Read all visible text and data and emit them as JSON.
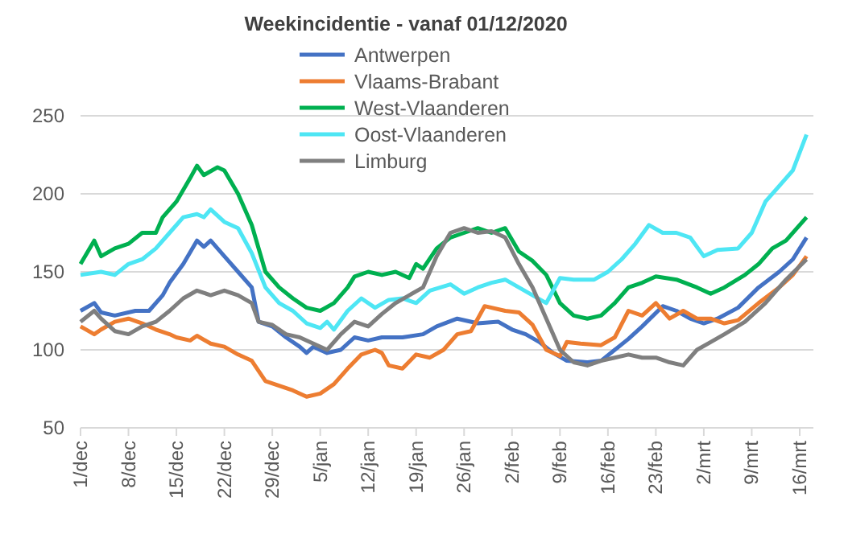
{
  "chart_data": {
    "type": "line",
    "title": "Weekincidentie  - vanaf 01/12/2020",
    "xlim": [
      "2020-12-01",
      "2021-03-18"
    ],
    "xticks": [
      {
        "value": "2020-12-01",
        "label": "1/dec"
      },
      {
        "value": "2020-12-08",
        "label": "8/dec"
      },
      {
        "value": "2020-12-15",
        "label": "15/dec"
      },
      {
        "value": "2020-12-22",
        "label": "22/dec"
      },
      {
        "value": "2020-12-29",
        "label": "29/dec"
      },
      {
        "value": "2021-01-05",
        "label": "5/jan"
      },
      {
        "value": "2021-01-12",
        "label": "12/jan"
      },
      {
        "value": "2021-01-19",
        "label": "19/jan"
      },
      {
        "value": "2021-01-26",
        "label": "26/jan"
      },
      {
        "value": "2021-02-02",
        "label": "2/feb"
      },
      {
        "value": "2021-02-09",
        "label": "9/feb"
      },
      {
        "value": "2021-02-16",
        "label": "16/feb"
      },
      {
        "value": "2021-02-23",
        "label": "23/feb"
      },
      {
        "value": "2021-03-02",
        "label": "2/mrt"
      },
      {
        "value": "2021-03-09",
        "label": "9/mrt"
      },
      {
        "value": "2021-03-16",
        "label": "16/mrt"
      }
    ],
    "ylim": [
      50,
      250
    ],
    "yticks": [
      50,
      100,
      150,
      200,
      250
    ],
    "grid": "y",
    "legend": "top",
    "marker": "none",
    "line_style": "solid",
    "series": [
      {
        "name": "Antwerpen",
        "color": "#4472c4",
        "x": [
          "2020-12-01",
          "2020-12-03",
          "2020-12-04",
          "2020-12-06",
          "2020-12-09",
          "2020-12-11",
          "2020-12-13",
          "2020-12-14",
          "2020-12-16",
          "2020-12-18",
          "2020-12-19",
          "2020-12-20",
          "2020-12-22",
          "2020-12-24",
          "2020-12-26",
          "2020-12-27",
          "2020-12-29",
          "2020-12-31",
          "2021-01-02",
          "2021-01-03",
          "2021-01-04",
          "2021-01-06",
          "2021-01-08",
          "2021-01-10",
          "2021-01-12",
          "2021-01-14",
          "2021-01-17",
          "2021-01-20",
          "2021-01-22",
          "2021-01-25",
          "2021-01-28",
          "2021-01-31",
          "2021-02-02",
          "2021-02-04",
          "2021-02-06",
          "2021-02-08",
          "2021-02-10",
          "2021-02-13",
          "2021-02-15",
          "2021-02-17",
          "2021-02-19",
          "2021-02-21",
          "2021-02-24",
          "2021-02-26",
          "2021-02-28",
          "2021-03-02",
          "2021-03-04",
          "2021-03-07",
          "2021-03-10",
          "2021-03-13",
          "2021-03-15",
          "2021-03-17"
        ],
        "values": [
          125,
          130,
          124,
          122,
          125,
          125,
          135,
          143,
          155,
          170,
          166,
          170,
          160,
          150,
          140,
          118,
          115,
          108,
          102,
          98,
          102,
          98,
          100,
          108,
          106,
          108,
          108,
          110,
          115,
          120,
          117,
          118,
          113,
          110,
          105,
          98,
          93,
          92,
          93,
          100,
          107,
          115,
          128,
          125,
          120,
          117,
          120,
          127,
          140,
          150,
          158,
          172
        ]
      },
      {
        "name": "Vlaams-Brabant",
        "color": "#ed7d31",
        "x": [
          "2020-12-01",
          "2020-12-03",
          "2020-12-04",
          "2020-12-06",
          "2020-12-08",
          "2020-12-10",
          "2020-12-12",
          "2020-12-14",
          "2020-12-15",
          "2020-12-17",
          "2020-12-18",
          "2020-12-20",
          "2020-12-22",
          "2020-12-24",
          "2020-12-26",
          "2020-12-28",
          "2020-12-30",
          "2021-01-01",
          "2021-01-03",
          "2021-01-05",
          "2021-01-07",
          "2021-01-09",
          "2021-01-11",
          "2021-01-13",
          "2021-01-14",
          "2021-01-15",
          "2021-01-17",
          "2021-01-19",
          "2021-01-21",
          "2021-01-23",
          "2021-01-25",
          "2021-01-27",
          "2021-01-29",
          "2021-02-01",
          "2021-02-03",
          "2021-02-05",
          "2021-02-07",
          "2021-02-09",
          "2021-02-10",
          "2021-02-12",
          "2021-02-15",
          "2021-02-17",
          "2021-02-19",
          "2021-02-21",
          "2021-02-23",
          "2021-02-25",
          "2021-02-27",
          "2021-03-01",
          "2021-03-03",
          "2021-03-05",
          "2021-03-07",
          "2021-03-10",
          "2021-03-13",
          "2021-03-15",
          "2021-03-17"
        ],
        "values": [
          115,
          110,
          113,
          118,
          120,
          117,
          113,
          110,
          108,
          106,
          109,
          104,
          102,
          97,
          93,
          80,
          77,
          74,
          70,
          72,
          78,
          88,
          97,
          100,
          98,
          90,
          88,
          97,
          95,
          100,
          110,
          112,
          128,
          125,
          124,
          116,
          100,
          96,
          105,
          104,
          103,
          108,
          125,
          122,
          130,
          120,
          125,
          120,
          120,
          117,
          119,
          130,
          140,
          148,
          160
        ]
      },
      {
        "name": "West-Vlaanderen",
        "color": "#00b050",
        "x": [
          "2020-12-01",
          "2020-12-03",
          "2020-12-04",
          "2020-12-06",
          "2020-12-08",
          "2020-12-10",
          "2020-12-12",
          "2020-12-13",
          "2020-12-14",
          "2020-12-15",
          "2020-12-17",
          "2020-12-18",
          "2020-12-19",
          "2020-12-21",
          "2020-12-22",
          "2020-12-24",
          "2020-12-26",
          "2020-12-28",
          "2020-12-30",
          "2021-01-01",
          "2021-01-03",
          "2021-01-05",
          "2021-01-07",
          "2021-01-09",
          "2021-01-10",
          "2021-01-12",
          "2021-01-14",
          "2021-01-16",
          "2021-01-18",
          "2021-01-19",
          "2021-01-20",
          "2021-01-22",
          "2021-01-24",
          "2021-01-26",
          "2021-01-28",
          "2021-01-30",
          "2021-02-01",
          "2021-02-03",
          "2021-02-05",
          "2021-02-07",
          "2021-02-09",
          "2021-02-11",
          "2021-02-13",
          "2021-02-15",
          "2021-02-17",
          "2021-02-19",
          "2021-02-21",
          "2021-02-23",
          "2021-02-26",
          "2021-03-01",
          "2021-03-03",
          "2021-03-05",
          "2021-03-08",
          "2021-03-10",
          "2021-03-12",
          "2021-03-14",
          "2021-03-17"
        ],
        "values": [
          155,
          170,
          160,
          165,
          168,
          175,
          175,
          185,
          190,
          195,
          210,
          218,
          212,
          217,
          215,
          200,
          180,
          150,
          140,
          133,
          127,
          125,
          130,
          140,
          147,
          150,
          148,
          150,
          146,
          155,
          152,
          165,
          172,
          175,
          178,
          175,
          178,
          163,
          157,
          148,
          130,
          122,
          120,
          122,
          130,
          140,
          143,
          147,
          145,
          140,
          136,
          140,
          148,
          155,
          165,
          170,
          185
        ]
      },
      {
        "name": "Oost-Vlaanderen",
        "color": "#4ee6f4",
        "x": [
          "2020-12-01",
          "2020-12-04",
          "2020-12-06",
          "2020-12-08",
          "2020-12-10",
          "2020-12-12",
          "2020-12-14",
          "2020-12-16",
          "2020-12-18",
          "2020-12-19",
          "2020-12-20",
          "2020-12-22",
          "2020-12-24",
          "2020-12-26",
          "2020-12-28",
          "2020-12-30",
          "2021-01-01",
          "2021-01-03",
          "2021-01-05",
          "2021-01-06",
          "2021-01-07",
          "2021-01-09",
          "2021-01-11",
          "2021-01-13",
          "2021-01-15",
          "2021-01-17",
          "2021-01-19",
          "2021-01-21",
          "2021-01-24",
          "2021-01-26",
          "2021-01-28",
          "2021-01-30",
          "2021-02-01",
          "2021-02-03",
          "2021-02-05",
          "2021-02-07",
          "2021-02-09",
          "2021-02-11",
          "2021-02-14",
          "2021-02-16",
          "2021-02-18",
          "2021-02-20",
          "2021-02-22",
          "2021-02-24",
          "2021-02-26",
          "2021-02-28",
          "2021-03-02",
          "2021-03-04",
          "2021-03-07",
          "2021-03-09",
          "2021-03-11",
          "2021-03-13",
          "2021-03-15",
          "2021-03-17"
        ],
        "values": [
          148,
          150,
          148,
          155,
          158,
          165,
          175,
          185,
          187,
          185,
          190,
          182,
          178,
          162,
          140,
          130,
          125,
          117,
          114,
          118,
          113,
          125,
          133,
          127,
          132,
          133,
          130,
          138,
          142,
          136,
          140,
          143,
          145,
          140,
          135,
          130,
          146,
          145,
          145,
          150,
          158,
          168,
          180,
          175,
          175,
          172,
          160,
          164,
          165,
          175,
          195,
          205,
          215,
          238
        ]
      },
      {
        "name": "Limburg",
        "color": "#7f7f7f",
        "x": [
          "2020-12-01",
          "2020-12-03",
          "2020-12-04",
          "2020-12-06",
          "2020-12-08",
          "2020-12-10",
          "2020-12-12",
          "2020-12-14",
          "2020-12-16",
          "2020-12-18",
          "2020-12-20",
          "2020-12-22",
          "2020-12-24",
          "2020-12-26",
          "2020-12-27",
          "2020-12-29",
          "2020-12-31",
          "2021-01-02",
          "2021-01-04",
          "2021-01-06",
          "2021-01-08",
          "2021-01-10",
          "2021-01-12",
          "2021-01-14",
          "2021-01-16",
          "2021-01-18",
          "2021-01-20",
          "2021-01-22",
          "2021-01-24",
          "2021-01-26",
          "2021-01-28",
          "2021-01-30",
          "2021-02-01",
          "2021-02-03",
          "2021-02-05",
          "2021-02-07",
          "2021-02-09",
          "2021-02-11",
          "2021-02-13",
          "2021-02-15",
          "2021-02-17",
          "2021-02-19",
          "2021-02-21",
          "2021-02-23",
          "2021-02-25",
          "2021-02-27",
          "2021-03-01",
          "2021-03-03",
          "2021-03-05",
          "2021-03-08",
          "2021-03-11",
          "2021-03-14",
          "2021-03-17"
        ],
        "values": [
          118,
          125,
          120,
          112,
          110,
          115,
          118,
          125,
          133,
          138,
          135,
          138,
          135,
          130,
          118,
          116,
          110,
          108,
          104,
          100,
          110,
          118,
          115,
          123,
          130,
          135,
          140,
          160,
          175,
          178,
          175,
          176,
          172,
          155,
          140,
          120,
          100,
          92,
          90,
          93,
          95,
          97,
          95,
          95,
          92,
          90,
          100,
          105,
          110,
          118,
          130,
          145,
          158
        ]
      }
    ]
  }
}
